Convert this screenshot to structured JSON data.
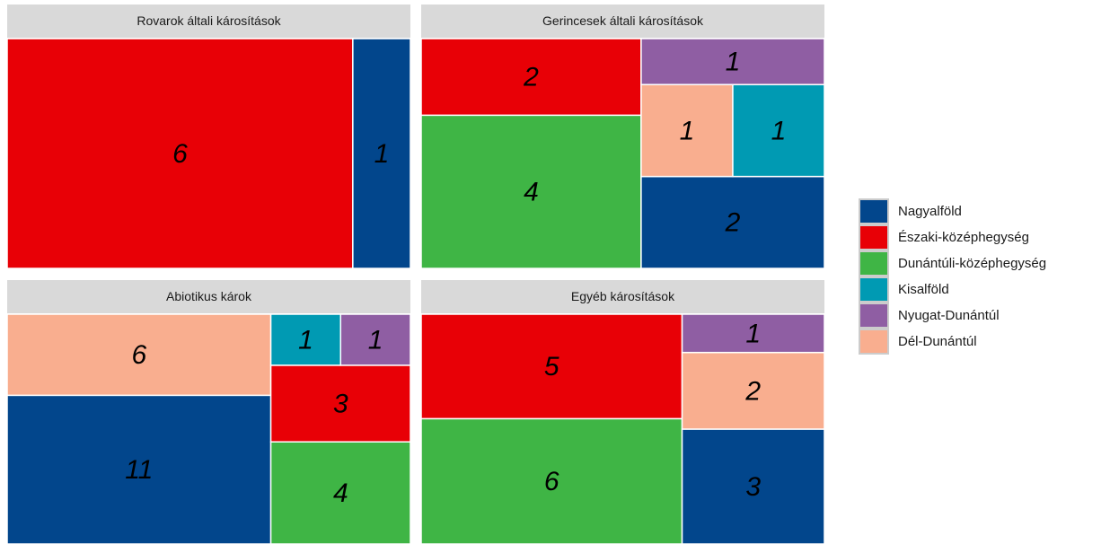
{
  "chart_data": {
    "type": "treemap",
    "series": [
      {
        "name": "Nagyalföld",
        "color": "#02468c"
      },
      {
        "name": "Északi-középhegység",
        "color": "#e80006"
      },
      {
        "name": "Dunántúli-középhegység",
        "color": "#3fb545"
      },
      {
        "name": "Kisalföld",
        "color": "#009ab3"
      },
      {
        "name": "Nyugat-Dunántúl",
        "color": "#8f5ea3"
      },
      {
        "name": "Dél-Dunántúl",
        "color": "#f9ae8f"
      }
    ],
    "facets": [
      {
        "title": "Rovarok általi károsítások",
        "items": [
          {
            "name": "Északi-középhegység",
            "value": 6
          },
          {
            "name": "Nagyalföld",
            "value": 1
          }
        ]
      },
      {
        "title": "Gerincesek általi károsítások",
        "items": [
          {
            "name": "Dunántúli-középhegység",
            "value": 4
          },
          {
            "name": "Északi-középhegység",
            "value": 2
          },
          {
            "name": "Nagyalföld",
            "value": 2
          },
          {
            "name": "Dél-Dunántúl",
            "value": 1
          },
          {
            "name": "Kisalföld",
            "value": 1
          },
          {
            "name": "Nyugat-Dunántúl",
            "value": 1
          }
        ]
      },
      {
        "title": "Abiotikus károk",
        "items": [
          {
            "name": "Nagyalföld",
            "value": 11
          },
          {
            "name": "Dél-Dunántúl",
            "value": 6
          },
          {
            "name": "Dunántúli-középhegység",
            "value": 4
          },
          {
            "name": "Északi-középhegység",
            "value": 3
          },
          {
            "name": "Kisalföld",
            "value": 1
          },
          {
            "name": "Nyugat-Dunántúl",
            "value": 1
          }
        ]
      },
      {
        "title": "Egyéb károsítások",
        "items": [
          {
            "name": "Dunántúli-középhegység",
            "value": 6
          },
          {
            "name": "Északi-középhegység",
            "value": 5
          },
          {
            "name": "Nagyalföld",
            "value": 3
          },
          {
            "name": "Dél-Dunántúl",
            "value": 2
          },
          {
            "name": "Nyugat-Dunántúl",
            "value": 1
          }
        ]
      }
    ]
  }
}
